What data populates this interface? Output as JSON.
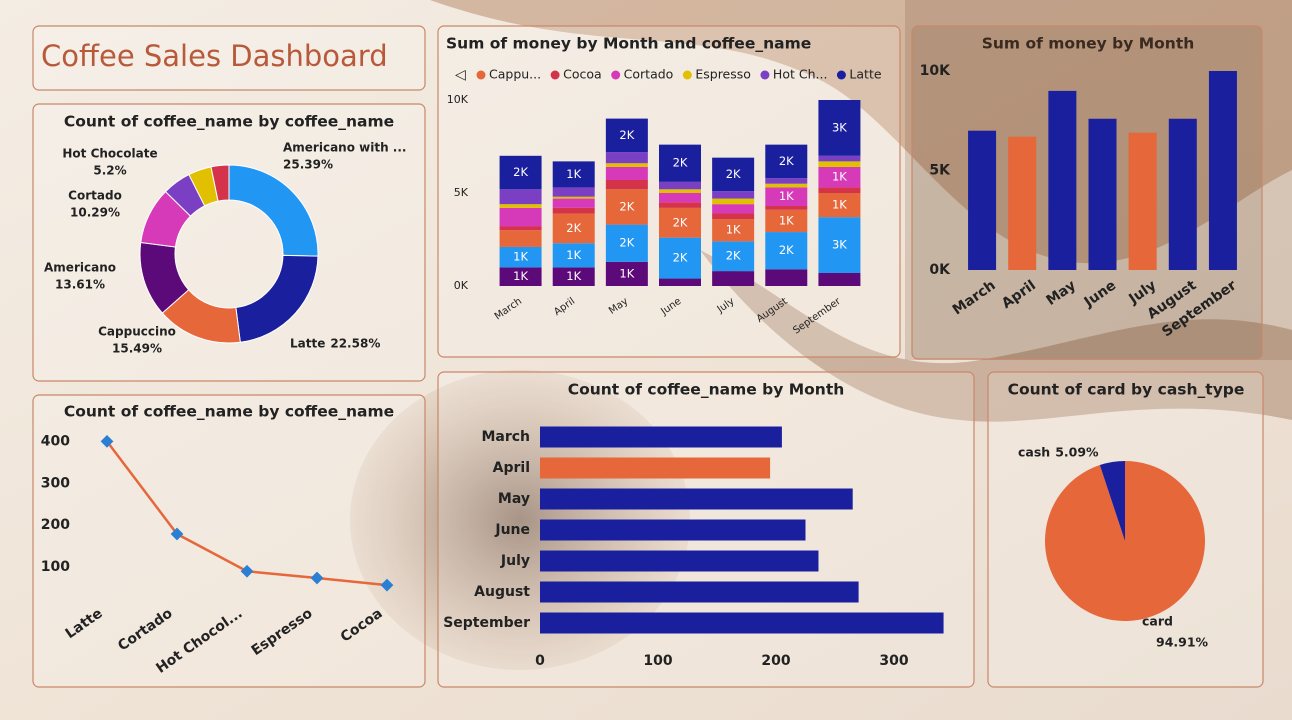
{
  "title": "Coffee Sales Dashboard",
  "chart_data": [
    {
      "type": "donut",
      "title": "Count of coffee_name by coffee_name",
      "categories": [
        "Americano with ...",
        "Latte",
        "Cappuccino",
        "Americano",
        "Cortado",
        "Hot Chocolate",
        null,
        null
      ],
      "values": [
        25.39,
        22.58,
        15.49,
        13.61,
        10.29,
        5.2,
        4.2,
        3.24
      ],
      "value_labels": [
        "25.39%",
        "22.58%",
        "15.49%",
        "13.61%",
        "10.29%",
        "5.2%",
        null,
        null
      ],
      "colors": [
        "#2196f3",
        "#1a1f9e",
        "#e5673a",
        "#5c0a7a",
        "#d63ab8",
        "#7b3fc4",
        "#e0c000",
        "#d4334a"
      ]
    },
    {
      "type": "stacked_bar",
      "title": "Sum of money by Month and coffee_name",
      "categories": [
        "March",
        "April",
        "May",
        "June",
        "July",
        "August",
        "September"
      ],
      "ylim": [
        0,
        10000
      ],
      "yticks": [
        {
          "value": 0,
          "label": "0K"
        },
        {
          "value": 5000,
          "label": "5K"
        },
        {
          "value": 10000,
          "label": "10K"
        }
      ],
      "series": [
        {
          "color": "#5c0a7a",
          "values": [
            1000,
            1000,
            1300,
            400,
            800,
            900,
            700
          ],
          "value_labels": [
            "1K",
            "1K",
            "1K",
            null,
            null,
            null,
            null
          ]
        },
        {
          "color": "#2196f3",
          "values": [
            1100,
            1300,
            2000,
            2200,
            1600,
            2000,
            3000
          ],
          "value_labels": [
            "1K",
            "1K",
            "2K",
            "2K",
            "2K",
            "2K",
            "3K"
          ]
        },
        {
          "name": "Cappu...",
          "color": "#e5673a",
          "values": [
            900,
            1600,
            1900,
            1600,
            1200,
            1200,
            1300
          ],
          "value_labels": [
            null,
            "2K",
            "2K",
            "2K",
            "1K",
            "1K",
            "1K"
          ]
        },
        {
          "name": "Cocoa",
          "color": "#d4334a",
          "values": [
            200,
            300,
            500,
            300,
            300,
            200,
            300
          ]
        },
        {
          "name": "Cortado",
          "color": "#d63ab8",
          "values": [
            1000,
            500,
            700,
            500,
            500,
            1000,
            1100
          ],
          "value_labels": [
            null,
            null,
            null,
            null,
            null,
            "1K",
            "1K"
          ]
        },
        {
          "name": "Espresso",
          "color": "#e0c000",
          "values": [
            200,
            100,
            200,
            200,
            300,
            200,
            300
          ]
        },
        {
          "name": "Hot Ch...",
          "color": "#7b3fc4",
          "values": [
            800,
            500,
            600,
            400,
            400,
            300,
            300
          ]
        },
        {
          "name": "Latte",
          "color": "#1a1f9e",
          "values": [
            1800,
            1400,
            1800,
            2000,
            1800,
            1800,
            3000
          ],
          "value_labels": [
            "2K",
            "1K",
            "2K",
            "2K",
            "2K",
            "2K",
            "3K"
          ]
        }
      ]
    },
    {
      "type": "bar",
      "title": "Sum of money by Month",
      "categories": [
        "March",
        "April",
        "May",
        "June",
        "July",
        "August",
        "September"
      ],
      "values": [
        7000,
        6700,
        9000,
        7600,
        6900,
        7600,
        10000
      ],
      "colors": [
        "#1a1f9e",
        "#e5673a",
        "#1a1f9e",
        "#1a1f9e",
        "#e5673a",
        "#1a1f9e",
        "#1a1f9e"
      ],
      "ylim": [
        0,
        10000
      ],
      "yticks": [
        {
          "value": 0,
          "label": "0K"
        },
        {
          "value": 5000,
          "label": "5K"
        },
        {
          "value": 10000,
          "label": "10K"
        }
      ]
    },
    {
      "type": "line",
      "title": "Count of coffee_name by coffee_name",
      "categories": [
        "Latte",
        "Cortado",
        "Hot Chocol...",
        "Espresso",
        "Cocoa"
      ],
      "values": [
        400,
        179,
        90,
        74,
        57
      ],
      "color": "#e5673a",
      "marker_color": "#2a7fd4",
      "ylim": [
        0,
        420
      ],
      "yticks": [
        100,
        200,
        300,
        400
      ]
    },
    {
      "type": "hbar",
      "title": "Count of coffee_name by Month",
      "categories": [
        "March",
        "April",
        "May",
        "June",
        "July",
        "August",
        "September"
      ],
      "values": [
        205,
        195,
        265,
        225,
        236,
        270,
        342
      ],
      "colors": [
        "#1a1f9e",
        "#e5673a",
        "#1a1f9e",
        "#1a1f9e",
        "#1a1f9e",
        "#1a1f9e",
        "#1a1f9e"
      ],
      "xlim": [
        0,
        350
      ],
      "xticks": [
        0,
        100,
        200,
        300
      ]
    },
    {
      "type": "pie",
      "title": "Count of card by cash_type",
      "categories": [
        "card",
        "cash"
      ],
      "values": [
        94.91,
        5.09
      ],
      "value_labels": [
        "94.91%",
        "5.09%"
      ],
      "colors": [
        "#e5673a",
        "#1a1f9e"
      ]
    }
  ]
}
